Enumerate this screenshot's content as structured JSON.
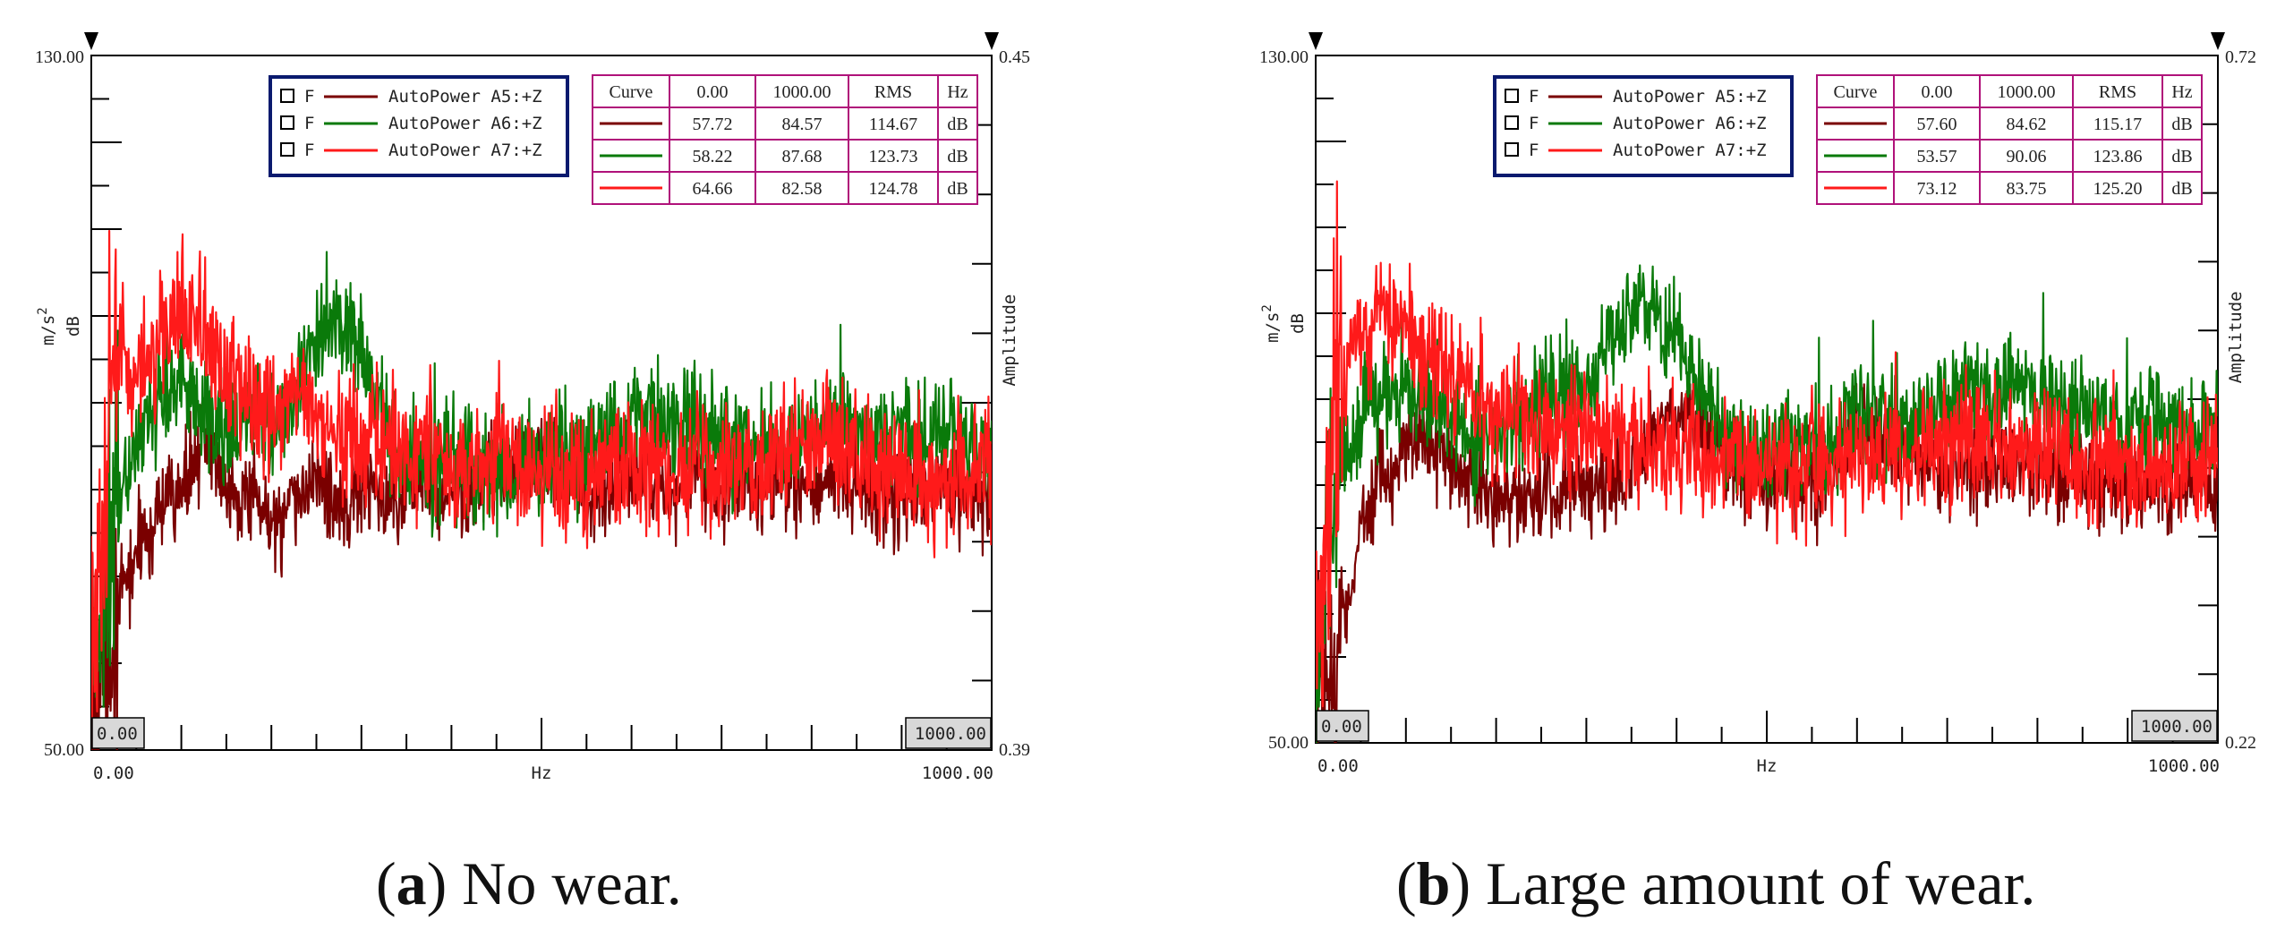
{
  "chart_data": [
    {
      "type": "line",
      "caption_letter": "a",
      "caption_text": ") No wear.",
      "caption_open": "(",
      "x_unit": "Hz",
      "y_unit_top": "m/s",
      "y_unit_sup": "2",
      "y_unit_bottom": "dB",
      "right_axis_label": "Amplitude",
      "xlim": [
        0,
        1000
      ],
      "ylim": [
        50,
        130
      ],
      "x_left_label": "0.00",
      "x_right_label": "1000.00",
      "x_left_box": "0.00",
      "x_right_box": "1000.00",
      "y_top_label": "130.00",
      "y_bottom_label": "50.00",
      "right_top_label": "0.45",
      "right_bottom_label": "0.39",
      "legend": [
        {
          "check": "F",
          "name": "AutoPower A5:+Z",
          "color": "#7a0000"
        },
        {
          "check": "F",
          "name": "AutoPower A6:+Z",
          "color": "#0a7a0a"
        },
        {
          "check": "F",
          "name": "AutoPower A7:+Z",
          "color": "#ff1a1a"
        }
      ],
      "stats_header": [
        "Curve",
        "0.00",
        "1000.00",
        "RMS",
        "Hz"
      ],
      "stats_rows": [
        {
          "color": "#7a0000",
          "values": [
            "57.72",
            "84.57",
            "114.67",
            "dB"
          ]
        },
        {
          "color": "#0a7a0a",
          "values": [
            "58.22",
            "87.68",
            "123.73",
            "dB"
          ]
        },
        {
          "color": "#ff1a1a",
          "values": [
            "64.66",
            "82.58",
            "124.78",
            "dB"
          ]
        }
      ],
      "series": [
        {
          "name": "AutoPower A5:+Z",
          "color": "#7a0000",
          "x": [
            0,
            25,
            50,
            75,
            100,
            125,
            150,
            175,
            200,
            225,
            250,
            275,
            300,
            325,
            350,
            375,
            400,
            425,
            450,
            475,
            500,
            525,
            550,
            575,
            600,
            625,
            650,
            675,
            700,
            725,
            750,
            775,
            800,
            825,
            850,
            875,
            900,
            925,
            950,
            975,
            1000
          ],
          "y": [
            55,
            64,
            73,
            77,
            80,
            86,
            81,
            79,
            76,
            78,
            82,
            78,
            80,
            79,
            81,
            80,
            79,
            80,
            82,
            82,
            83,
            81,
            79,
            81,
            82,
            81,
            80,
            81,
            79,
            80,
            81,
            80,
            80,
            81,
            80,
            80,
            79,
            80,
            80,
            79,
            80
          ],
          "noise": 3.2
        },
        {
          "name": "AutoPower A6:+Z",
          "color": "#0a7a0a",
          "x": [
            0,
            25,
            50,
            75,
            100,
            125,
            150,
            175,
            200,
            225,
            250,
            275,
            300,
            325,
            350,
            375,
            400,
            425,
            450,
            475,
            500,
            525,
            550,
            575,
            600,
            625,
            650,
            675,
            700,
            725,
            750,
            775,
            800,
            825,
            850,
            875,
            900,
            925,
            950,
            975,
            1000
          ],
          "y": [
            58,
            75,
            85,
            91,
            93,
            89,
            86,
            88,
            87,
            91,
            98,
            100,
            97,
            89,
            84,
            83,
            84,
            83,
            82,
            82,
            84,
            85,
            85,
            86,
            88,
            89,
            87,
            88,
            86,
            85,
            85,
            86,
            87,
            88,
            87,
            86,
            87,
            86,
            87,
            85,
            86
          ],
          "noise": 4.0
        },
        {
          "name": "AutoPower A7:+Z",
          "color": "#ff1a1a",
          "x": [
            0,
            25,
            50,
            75,
            100,
            125,
            150,
            175,
            200,
            225,
            250,
            275,
            300,
            325,
            350,
            375,
            400,
            425,
            450,
            475,
            500,
            525,
            550,
            575,
            600,
            625,
            650,
            675,
            700,
            725,
            750,
            775,
            800,
            825,
            850,
            875,
            900,
            925,
            950,
            975,
            1000
          ],
          "y": [
            62,
            96,
            92,
            97,
            101,
            98,
            92,
            91,
            89,
            90,
            88,
            86,
            86,
            85,
            84,
            83,
            82,
            83,
            84,
            83,
            82,
            82,
            81,
            82,
            84,
            83,
            82,
            83,
            81,
            83,
            82,
            84,
            85,
            85,
            84,
            82,
            81,
            82,
            81,
            82,
            83
          ],
          "noise": 4.5
        }
      ]
    },
    {
      "type": "line",
      "caption_letter": "b",
      "caption_text": ") Large amount of wear.",
      "caption_open": "(",
      "x_unit": "Hz",
      "y_unit_top": "m/s",
      "y_unit_sup": "2",
      "y_unit_bottom": "dB",
      "right_axis_label": "Amplitude",
      "xlim": [
        0,
        1000
      ],
      "ylim": [
        50,
        130
      ],
      "x_left_label": "0.00",
      "x_right_label": "1000.00",
      "x_left_box": "0.00",
      "x_right_box": "1000.00",
      "y_top_label": "130.00",
      "y_bottom_label": "50.00",
      "right_top_label": "0.72",
      "right_bottom_label": "0.22",
      "legend": [
        {
          "check": "F",
          "name": "AutoPower A5:+Z",
          "color": "#7a0000"
        },
        {
          "check": "F",
          "name": "AutoPower A6:+Z",
          "color": "#0a7a0a"
        },
        {
          "check": "F",
          "name": "AutoPower A7:+Z",
          "color": "#ff1a1a"
        }
      ],
      "stats_header": [
        "Curve",
        "0.00",
        "1000.00",
        "RMS",
        "Hz"
      ],
      "stats_rows": [
        {
          "color": "#7a0000",
          "values": [
            "57.60",
            "84.62",
            "115.17",
            "dB"
          ]
        },
        {
          "color": "#0a7a0a",
          "values": [
            "53.57",
            "90.06",
            "123.86",
            "dB"
          ]
        },
        {
          "color": "#ff1a1a",
          "values": [
            "73.12",
            "83.75",
            "125.20",
            "dB"
          ]
        }
      ],
      "series": [
        {
          "name": "AutoPower A5:+Z",
          "color": "#7a0000",
          "x": [
            0,
            25,
            50,
            75,
            100,
            125,
            150,
            175,
            200,
            225,
            250,
            275,
            300,
            325,
            350,
            375,
            400,
            425,
            450,
            475,
            500,
            525,
            550,
            575,
            600,
            625,
            650,
            675,
            700,
            725,
            750,
            775,
            800,
            825,
            850,
            875,
            900,
            925,
            950,
            975,
            1000
          ],
          "y": [
            55,
            60,
            75,
            81,
            84,
            86,
            83,
            80,
            79,
            78,
            78,
            80,
            79,
            80,
            81,
            86,
            88,
            86,
            84,
            81,
            80,
            81,
            80,
            82,
            86,
            85,
            84,
            83,
            82,
            82,
            82,
            83,
            82,
            82,
            81,
            80,
            80,
            80,
            80,
            79,
            80
          ],
          "noise": 3.3
        },
        {
          "name": "AutoPower A6:+Z",
          "color": "#0a7a0a",
          "x": [
            0,
            25,
            50,
            75,
            100,
            125,
            150,
            175,
            200,
            225,
            250,
            275,
            300,
            325,
            350,
            375,
            400,
            425,
            450,
            475,
            500,
            525,
            550,
            575,
            600,
            625,
            650,
            675,
            700,
            725,
            750,
            775,
            800,
            825,
            850,
            875,
            900,
            925,
            950,
            975,
            1000
          ],
          "y": [
            60,
            80,
            88,
            90,
            91,
            90,
            88,
            86,
            86,
            88,
            90,
            91,
            92,
            96,
            101,
            101,
            96,
            90,
            86,
            84,
            84,
            85,
            84,
            85,
            89,
            88,
            88,
            88,
            90,
            91,
            91,
            92,
            91,
            89,
            89,
            88,
            87,
            88,
            87,
            86,
            88
          ],
          "noise": 3.8
        },
        {
          "name": "AutoPower A7:+Z",
          "color": "#ff1a1a",
          "x": [
            0,
            25,
            50,
            75,
            100,
            125,
            150,
            175,
            200,
            225,
            250,
            275,
            300,
            325,
            350,
            375,
            400,
            425,
            450,
            475,
            500,
            525,
            550,
            575,
            600,
            625,
            650,
            675,
            700,
            725,
            750,
            775,
            800,
            825,
            850,
            875,
            900,
            925,
            950,
            975,
            1000
          ],
          "y": [
            64,
            92,
            96,
            100,
            100,
            95,
            92,
            89,
            88,
            89,
            87,
            86,
            86,
            86,
            86,
            85,
            85,
            84,
            83,
            82,
            82,
            82,
            82,
            83,
            84,
            84,
            84,
            85,
            85,
            85,
            85,
            85,
            84,
            84,
            83,
            82,
            82,
            82,
            82,
            83,
            84
          ],
          "noise": 4.3
        }
      ]
    }
  ]
}
